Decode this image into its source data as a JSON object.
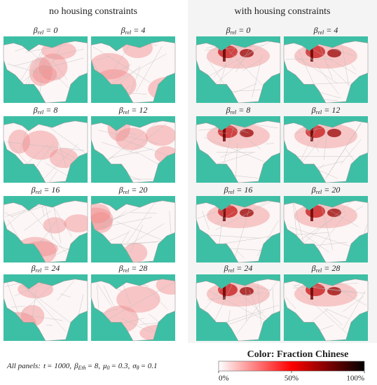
{
  "groups": [
    {
      "title": "no housing constraints",
      "panels": [
        0,
        4,
        8,
        12,
        16,
        20,
        24,
        28
      ]
    },
    {
      "title": "with housing constraints",
      "panels": [
        0,
        4,
        8,
        12,
        16,
        20,
        24,
        28
      ]
    }
  ],
  "panel_label": {
    "symbol": "β",
    "subscript": "rel",
    "relation": "="
  },
  "colorbar": {
    "title": "Color: Fraction Chinese",
    "ticks": [
      {
        "value": 0,
        "label": "0%"
      },
      {
        "value": 50,
        "label": "50%"
      },
      {
        "value": 100,
        "label": "100%"
      }
    ],
    "range": [
      0,
      100
    ],
    "colors": [
      "#ffffff",
      "#ff0000",
      "#000000"
    ]
  },
  "footer": {
    "lead": "All panels:",
    "params": [
      {
        "symbol": "t",
        "rest": "= 1000,"
      },
      {
        "symbol": "β",
        "sub": "Eth",
        "rest": "= 8,"
      },
      {
        "symbol": "μ",
        "sub": "0",
        "rest": "= 0.3,"
      },
      {
        "symbol": "σ",
        "sub": "θ",
        "rest": "= 0.1"
      }
    ]
  }
}
